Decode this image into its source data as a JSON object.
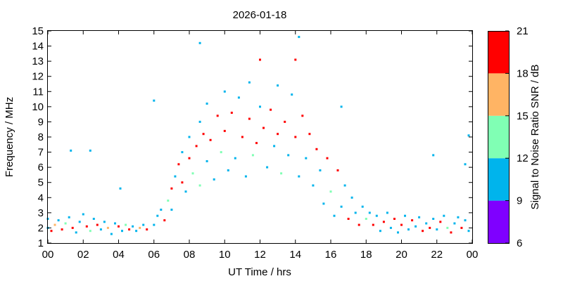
{
  "chart_data": {
    "type": "heatmap",
    "title": "2026-01-18",
    "xlabel": "UT Time / hrs",
    "ylabel": "Frequency / MHz",
    "xlim": [
      0,
      24
    ],
    "ylim": [
      1,
      15
    ],
    "x_tick_labels": [
      "00",
      "02",
      "04",
      "06",
      "08",
      "10",
      "12",
      "14",
      "16",
      "18",
      "20",
      "22",
      "00"
    ],
    "y_tick_labels": [
      "1",
      "2",
      "3",
      "4",
      "5",
      "6",
      "7",
      "8",
      "9",
      "10",
      "11",
      "12",
      "13",
      "14",
      "15"
    ],
    "grid": false,
    "colorbar": {
      "label": "Signal to Noise Ratio SNR / dB",
      "range": [
        6,
        21
      ],
      "tick_labels": [
        "6",
        "9",
        "12",
        "15",
        "18",
        "21"
      ],
      "bins": [
        {
          "min": 6,
          "max": 9,
          "color": "#7f00ff"
        },
        {
          "min": 9,
          "max": 12,
          "color": "#00b4ec"
        },
        {
          "min": 12,
          "max": 15,
          "color": "#80ffb4"
        },
        {
          "min": 15,
          "max": 18,
          "color": "#ffb464"
        },
        {
          "min": 18,
          "max": 21,
          "color": "#ff0000"
        }
      ]
    },
    "points_description": "Sampled SNR observations (time hrs, frequency MHz, SNR dB) forming a diurnal band: ~1.5-3 MHz at night, rising to ~4-12 MHz between 07 and 16 UT with highest SNR near 7-10 MHz.",
    "points": [
      [
        0.0,
        2.0,
        10
      ],
      [
        0.0,
        2.6,
        11
      ],
      [
        0.2,
        1.8,
        19
      ],
      [
        0.4,
        2.2,
        16
      ],
      [
        0.6,
        2.5,
        10
      ],
      [
        0.8,
        1.9,
        20
      ],
      [
        1.0,
        2.3,
        12
      ],
      [
        1.2,
        2.7,
        10
      ],
      [
        1.4,
        2.0,
        19
      ],
      [
        1.6,
        1.7,
        10
      ],
      [
        1.8,
        2.4,
        11
      ],
      [
        2.0,
        2.9,
        10
      ],
      [
        2.2,
        2.1,
        18
      ],
      [
        2.4,
        1.8,
        12
      ],
      [
        2.6,
        2.6,
        10
      ],
      [
        2.8,
        2.2,
        19
      ],
      [
        3.0,
        1.9,
        11
      ],
      [
        3.2,
        2.4,
        10
      ],
      [
        3.4,
        2.0,
        17
      ],
      [
        3.6,
        1.6,
        10
      ],
      [
        3.8,
        2.3,
        11
      ],
      [
        4.0,
        2.1,
        19
      ],
      [
        4.2,
        1.8,
        10
      ],
      [
        4.4,
        2.2,
        13
      ],
      [
        4.6,
        1.9,
        19
      ],
      [
        4.8,
        2.1,
        10
      ],
      [
        5.0,
        1.8,
        11
      ],
      [
        5.2,
        2.0,
        17
      ],
      [
        5.4,
        2.2,
        10
      ],
      [
        5.6,
        1.9,
        18
      ],
      [
        6.0,
        2.2,
        10
      ],
      [
        6.2,
        2.8,
        11
      ],
      [
        6.4,
        3.2,
        10
      ],
      [
        6.6,
        2.5,
        18
      ],
      [
        6.8,
        3.8,
        12
      ],
      [
        7.0,
        4.6,
        19
      ],
      [
        7.0,
        3.2,
        10
      ],
      [
        7.2,
        5.4,
        10
      ],
      [
        7.4,
        6.2,
        20
      ],
      [
        7.6,
        7.0,
        11
      ],
      [
        7.6,
        5.0,
        19
      ],
      [
        7.8,
        4.4,
        10
      ],
      [
        8.0,
        6.6,
        20
      ],
      [
        8.0,
        8.0,
        11
      ],
      [
        8.2,
        5.6,
        13
      ],
      [
        8.4,
        7.4,
        19
      ],
      [
        8.6,
        9.0,
        10
      ],
      [
        8.6,
        4.8,
        12
      ],
      [
        8.8,
        8.2,
        20
      ],
      [
        9.0,
        6.4,
        11
      ],
      [
        9.0,
        10.2,
        10
      ],
      [
        9.2,
        7.8,
        19
      ],
      [
        9.4,
        5.2,
        10
      ],
      [
        9.6,
        9.4,
        20
      ],
      [
        9.8,
        7.0,
        12
      ],
      [
        10.0,
        11.0,
        10
      ],
      [
        10.0,
        8.4,
        20
      ],
      [
        10.2,
        5.8,
        11
      ],
      [
        10.4,
        9.6,
        19
      ],
      [
        10.6,
        6.6,
        10
      ],
      [
        10.8,
        10.6,
        11
      ],
      [
        11.0,
        8.0,
        20
      ],
      [
        11.2,
        5.4,
        10
      ],
      [
        11.4,
        11.6,
        10
      ],
      [
        11.4,
        9.2,
        19
      ],
      [
        11.6,
        6.8,
        12
      ],
      [
        11.8,
        7.6,
        20
      ],
      [
        12.0,
        10.0,
        11
      ],
      [
        12.0,
        13.1,
        19
      ],
      [
        12.2,
        8.6,
        20
      ],
      [
        12.4,
        6.0,
        10
      ],
      [
        12.6,
        9.8,
        19
      ],
      [
        12.8,
        7.4,
        11
      ],
      [
        13.0,
        11.4,
        10
      ],
      [
        13.0,
        8.2,
        20
      ],
      [
        13.2,
        5.6,
        12
      ],
      [
        13.4,
        9.0,
        19
      ],
      [
        13.6,
        6.8,
        10
      ],
      [
        13.8,
        10.8,
        11
      ],
      [
        14.0,
        8.0,
        20
      ],
      [
        14.0,
        13.1,
        19
      ],
      [
        14.2,
        5.4,
        10
      ],
      [
        14.4,
        9.4,
        18
      ],
      [
        14.6,
        6.6,
        11
      ],
      [
        14.8,
        8.2,
        19
      ],
      [
        15.0,
        4.8,
        10
      ],
      [
        15.2,
        7.2,
        20
      ],
      [
        15.4,
        5.8,
        11
      ],
      [
        15.6,
        3.6,
        10
      ],
      [
        15.8,
        6.6,
        19
      ],
      [
        16.0,
        4.4,
        12
      ],
      [
        16.2,
        2.8,
        10
      ],
      [
        16.4,
        5.8,
        19
      ],
      [
        16.6,
        3.4,
        11
      ],
      [
        16.8,
        4.8,
        10
      ],
      [
        17.0,
        2.6,
        18
      ],
      [
        17.2,
        4.0,
        10
      ],
      [
        17.4,
        3.0,
        11
      ],
      [
        17.6,
        2.2,
        19
      ],
      [
        17.8,
        3.4,
        10
      ],
      [
        18.0,
        2.6,
        12
      ],
      [
        18.2,
        3.0,
        10
      ],
      [
        18.4,
        2.2,
        18
      ],
      [
        18.6,
        2.8,
        11
      ],
      [
        18.8,
        1.8,
        10
      ],
      [
        19.0,
        2.4,
        19
      ],
      [
        19.2,
        3.0,
        10
      ],
      [
        19.4,
        2.0,
        11
      ],
      [
        19.6,
        2.6,
        18
      ],
      [
        19.8,
        1.7,
        10
      ],
      [
        20.0,
        2.2,
        19
      ],
      [
        20.2,
        2.8,
        11
      ],
      [
        20.4,
        1.9,
        10
      ],
      [
        20.6,
        2.5,
        18
      ],
      [
        20.8,
        2.1,
        10
      ],
      [
        21.0,
        2.7,
        11
      ],
      [
        21.2,
        1.8,
        19
      ],
      [
        21.4,
        2.3,
        10
      ],
      [
        21.6,
        2.0,
        18
      ],
      [
        21.8,
        2.6,
        11
      ],
      [
        22.0,
        1.9,
        10
      ],
      [
        22.2,
        2.4,
        19
      ],
      [
        22.4,
        2.8,
        10
      ],
      [
        22.6,
        2.0,
        12
      ],
      [
        22.8,
        1.7,
        18
      ],
      [
        23.0,
        2.3,
        10
      ],
      [
        23.2,
        2.7,
        11
      ],
      [
        23.4,
        2.0,
        19
      ],
      [
        23.6,
        2.5,
        10
      ],
      [
        23.8,
        1.8,
        11
      ],
      [
        8.6,
        14.2,
        10
      ],
      [
        14.2,
        14.6,
        10
      ],
      [
        16.6,
        10.0,
        10
      ],
      [
        21.8,
        6.8,
        10
      ],
      [
        23.8,
        8.1,
        10
      ],
      [
        6.0,
        10.4,
        10
      ],
      [
        1.3,
        7.1,
        10
      ],
      [
        2.4,
        7.1,
        10
      ],
      [
        4.1,
        4.6,
        10
      ],
      [
        23.6,
        6.2,
        10
      ]
    ]
  }
}
